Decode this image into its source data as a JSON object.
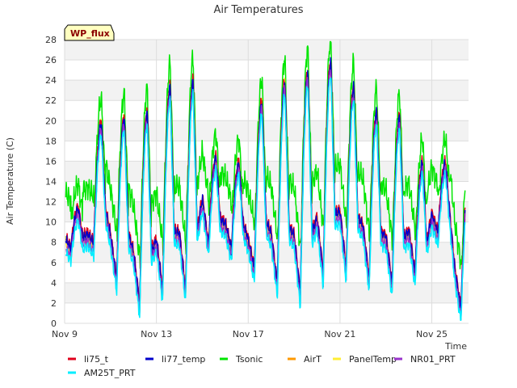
{
  "chart_data": {
    "type": "line",
    "title": "Air Temperatures",
    "xlabel": "Time",
    "ylabel": "Air Temperature (C)",
    "badge": "WP_flux",
    "xlim": [
      9,
      26.6
    ],
    "ylim": [
      0,
      28
    ],
    "x_ticks": [
      {
        "value": 9,
        "label": "Nov 9"
      },
      {
        "value": 13,
        "label": "Nov 13"
      },
      {
        "value": 17,
        "label": "Nov 17"
      },
      {
        "value": 21,
        "label": "Nov 21"
      },
      {
        "value": 25,
        "label": "Nov 25"
      }
    ],
    "y_ticks": [
      0,
      2,
      4,
      6,
      8,
      10,
      12,
      14,
      16,
      18,
      20,
      22,
      24,
      26,
      28
    ],
    "grid": true,
    "legend_position": "bottom",
    "daily_extremes": {
      "x_day_start": [
        9,
        10,
        11,
        12,
        13,
        14,
        15,
        16,
        17,
        18,
        19,
        20,
        21,
        22,
        23,
        24,
        25,
        26
      ],
      "min": [
        7.0,
        7.5,
        4.0,
        1.5,
        3.0,
        3.0,
        7.5,
        7.0,
        5.0,
        3.5,
        2.5,
        4.5,
        5.0,
        4.0,
        3.5,
        4.5,
        8.5,
        1.0
      ],
      "max": [
        11.0,
        19.5,
        20.0,
        20.5,
        23.0,
        23.5,
        16.0,
        15.5,
        21.5,
        23.5,
        24.5,
        25.5,
        23.0,
        20.5,
        20.0,
        15.5,
        15.5,
        14.0
      ]
    },
    "series": [
      {
        "name": "li75_t",
        "color": "#e0001b",
        "offset": 0.6
      },
      {
        "name": "li77_temp",
        "color": "#0000cc",
        "offset": 0.3
      },
      {
        "name": "Tsonic",
        "color": "#00e600",
        "tsonic": true
      },
      {
        "name": "AirT",
        "color": "#ff9900",
        "offset": 0.0
      },
      {
        "name": "PanelTemp",
        "color": "#ffee33",
        "offset": 0.2
      },
      {
        "name": "NR01_PRT",
        "color": "#9933cc",
        "offset": -0.4
      },
      {
        "name": "AM25T_PRT",
        "color": "#00eeff",
        "offset": -0.9
      }
    ]
  }
}
